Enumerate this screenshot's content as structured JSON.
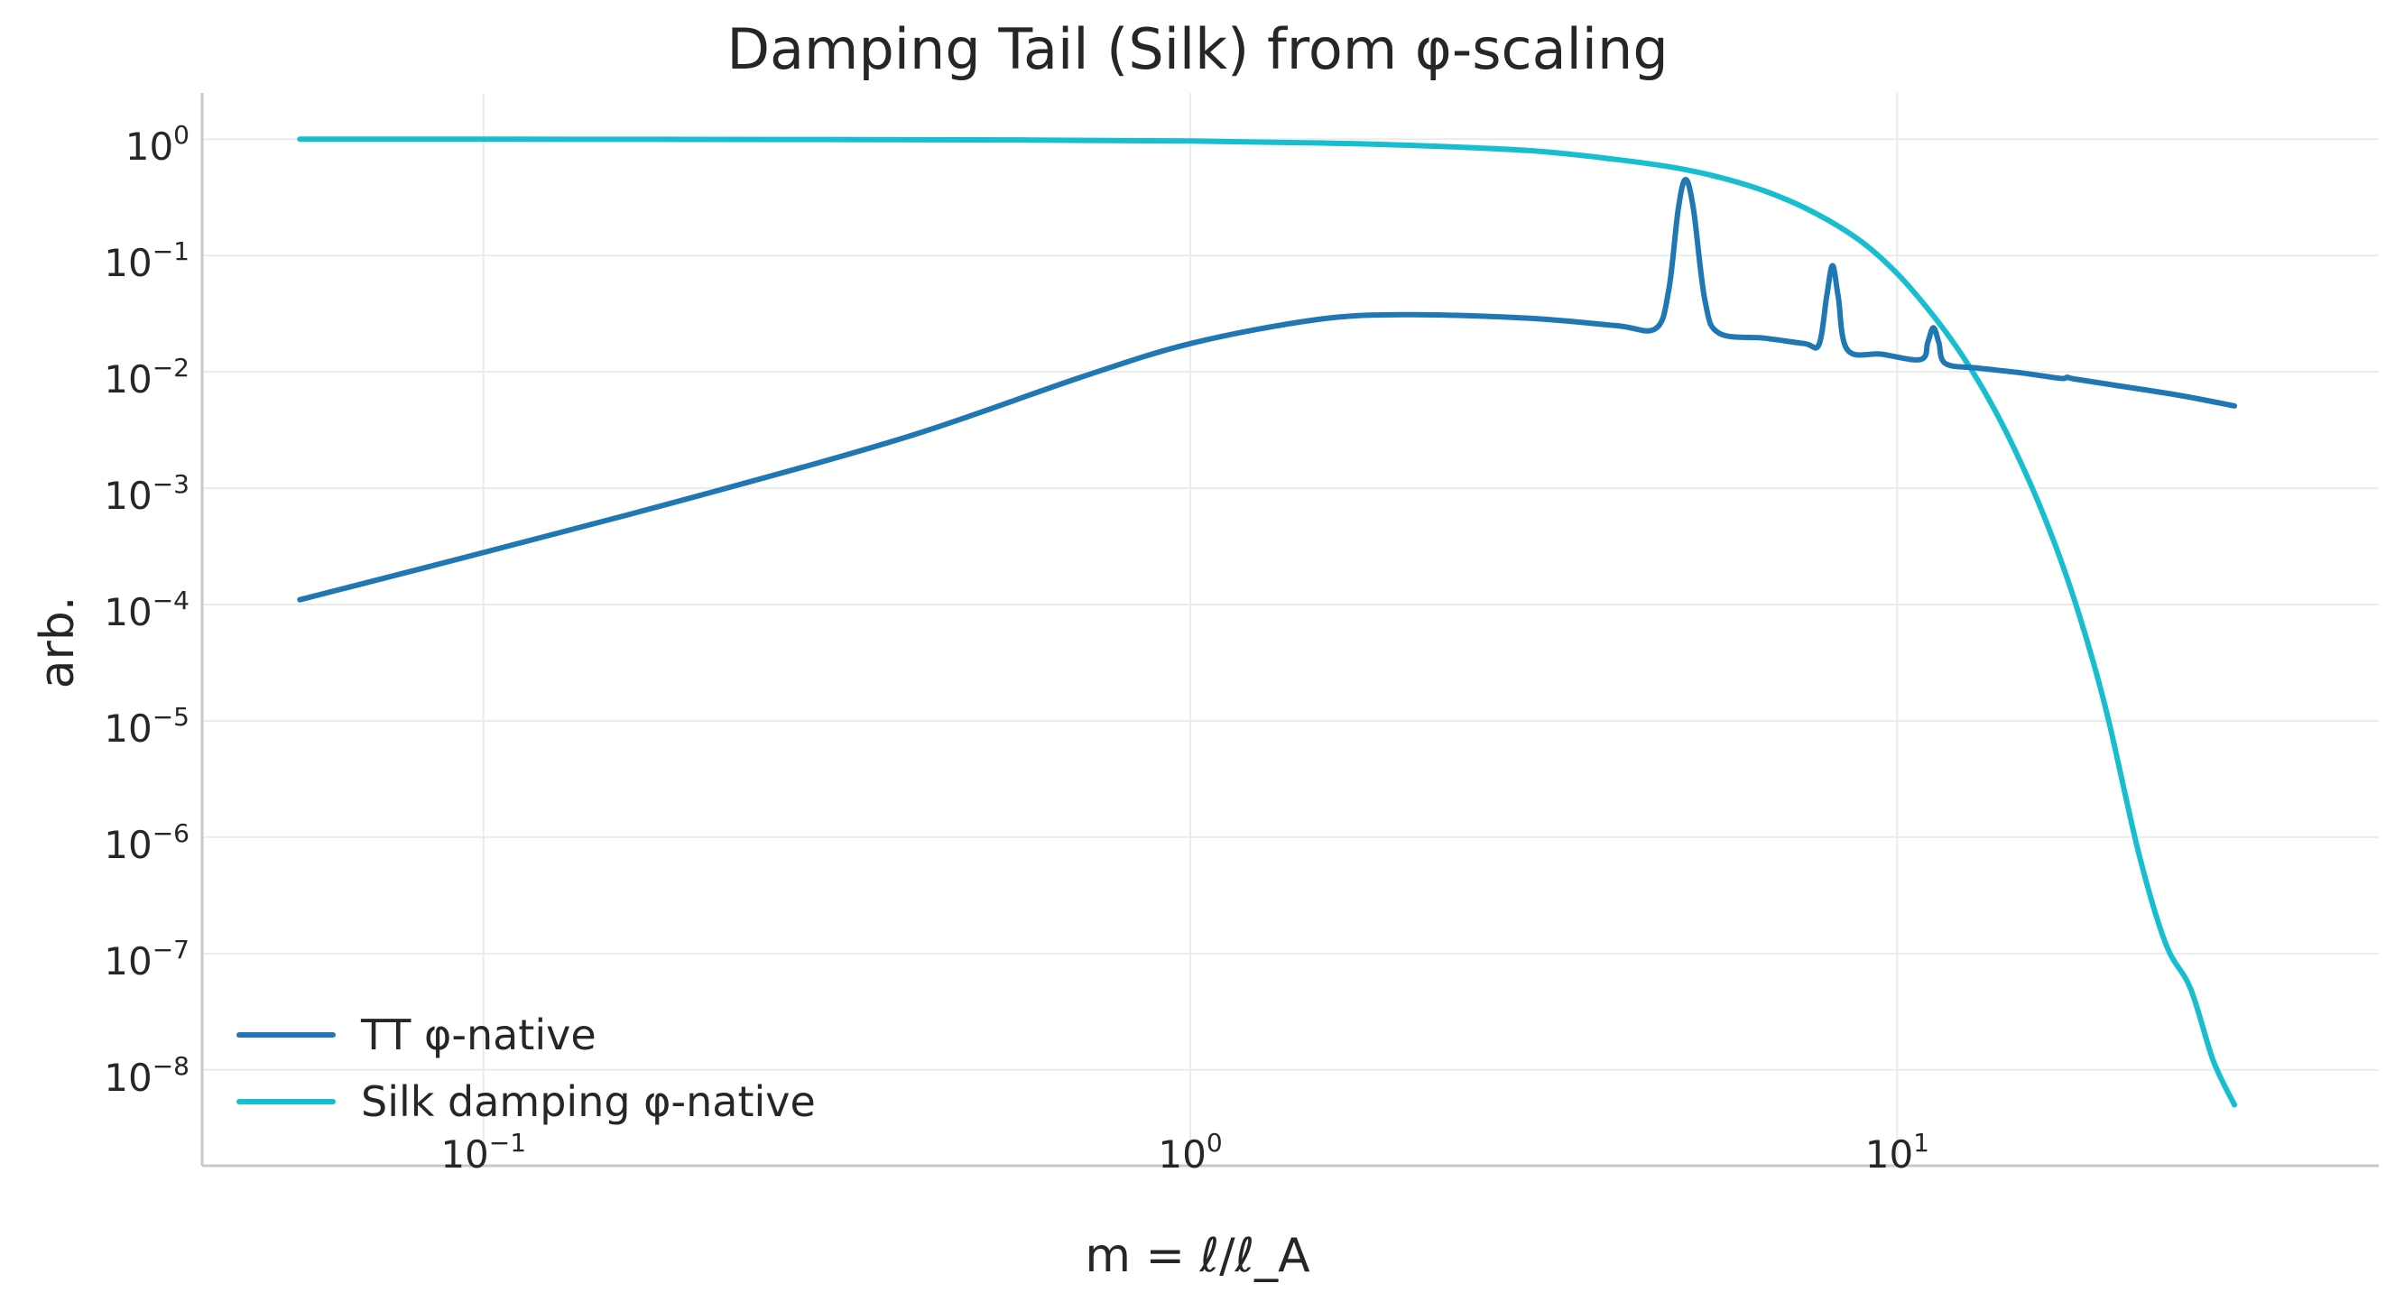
{
  "chart_data": {
    "type": "line",
    "title": "Damping Tail (Silk) from φ-scaling",
    "xlabel": "m = ℓ/ℓ_A",
    "ylabel": "arb.",
    "xscale": "log",
    "yscale": "log",
    "xlim": [
      0.04,
      48
    ],
    "ylim": [
      1.5e-09,
      2.5
    ],
    "grid": true,
    "legend_position": "lower-left",
    "x_ticks": [
      {
        "base": "10",
        "exp": "−1",
        "value": 0.1
      },
      {
        "base": "10",
        "exp": "0",
        "value": 1
      },
      {
        "base": "10",
        "exp": "1",
        "value": 10
      }
    ],
    "y_ticks": [
      {
        "base": "10",
        "exp": "0",
        "value": 1
      },
      {
        "base": "10",
        "exp": "−1",
        "value": 0.1
      },
      {
        "base": "10",
        "exp": "−2",
        "value": 0.01
      },
      {
        "base": "10",
        "exp": "−3",
        "value": 0.001
      },
      {
        "base": "10",
        "exp": "−4",
        "value": 0.0001
      },
      {
        "base": "10",
        "exp": "−5",
        "value": 1e-05
      },
      {
        "base": "10",
        "exp": "−6",
        "value": 1e-06
      },
      {
        "base": "10",
        "exp": "−7",
        "value": 1e-07
      },
      {
        "base": "10",
        "exp": "−8",
        "value": 1e-08
      }
    ],
    "series": [
      {
        "name": "TT φ-native",
        "color": "#1f77b4",
        "points": [
          [
            0.055,
            0.00011
          ],
          [
            0.1,
            0.00028
          ],
          [
            0.2,
            0.00085
          ],
          [
            0.4,
            0.0028
          ],
          [
            0.7,
            0.009
          ],
          [
            1.0,
            0.0175
          ],
          [
            1.5,
            0.028
          ],
          [
            2.0,
            0.031
          ],
          [
            3.0,
            0.029
          ],
          [
            4.0,
            0.025
          ],
          [
            4.55,
            0.0235
          ],
          [
            4.75,
            0.05
          ],
          [
            4.9,
            0.25
          ],
          [
            5.02,
            0.45
          ],
          [
            5.15,
            0.25
          ],
          [
            5.35,
            0.04
          ],
          [
            5.6,
            0.0215
          ],
          [
            6.5,
            0.0195
          ],
          [
            7.4,
            0.0175
          ],
          [
            7.75,
            0.0172
          ],
          [
            7.95,
            0.045
          ],
          [
            8.1,
            0.082
          ],
          [
            8.25,
            0.045
          ],
          [
            8.5,
            0.0155
          ],
          [
            9.5,
            0.0142
          ],
          [
            10.8,
            0.0128
          ],
          [
            11.05,
            0.018
          ],
          [
            11.25,
            0.024
          ],
          [
            11.45,
            0.018
          ],
          [
            11.7,
            0.0118
          ],
          [
            13.0,
            0.0108
          ],
          [
            15.0,
            0.0098
          ],
          [
            17.0,
            0.0088
          ],
          [
            17.4,
            0.009
          ],
          [
            17.8,
            0.0087
          ],
          [
            20.0,
            0.0078
          ],
          [
            25.0,
            0.0063
          ],
          [
            30.0,
            0.0051
          ]
        ]
      },
      {
        "name": "Silk damping φ-native",
        "color": "#17becf",
        "points": [
          [
            0.055,
            1.0
          ],
          [
            0.1,
            1.0
          ],
          [
            0.3,
            0.995
          ],
          [
            0.6,
            0.985
          ],
          [
            1.0,
            0.965
          ],
          [
            1.5,
            0.93
          ],
          [
            2.0,
            0.89
          ],
          [
            3.0,
            0.8
          ],
          [
            4.0,
            0.67
          ],
          [
            5.0,
            0.55
          ],
          [
            6.0,
            0.42
          ],
          [
            7.0,
            0.3
          ],
          [
            8.0,
            0.2
          ],
          [
            9.0,
            0.125
          ],
          [
            10.0,
            0.07
          ],
          [
            11.0,
            0.036
          ],
          [
            12.0,
            0.018
          ],
          [
            13.0,
            0.0085
          ],
          [
            14.0,
            0.0038
          ],
          [
            15.0,
            0.0016
          ],
          [
            16.0,
            0.00065
          ],
          [
            17.0,
            0.00025
          ],
          [
            18.0,
            9e-05
          ],
          [
            19.0,
            3e-05
          ],
          [
            20.0,
            9e-06
          ],
          [
            22.0,
            7e-07
          ],
          [
            24.0,
            1.2e-07
          ],
          [
            26.0,
            5e-08
          ],
          [
            28.0,
            1.2e-08
          ],
          [
            30.0,
            5e-09
          ]
        ]
      }
    ]
  }
}
